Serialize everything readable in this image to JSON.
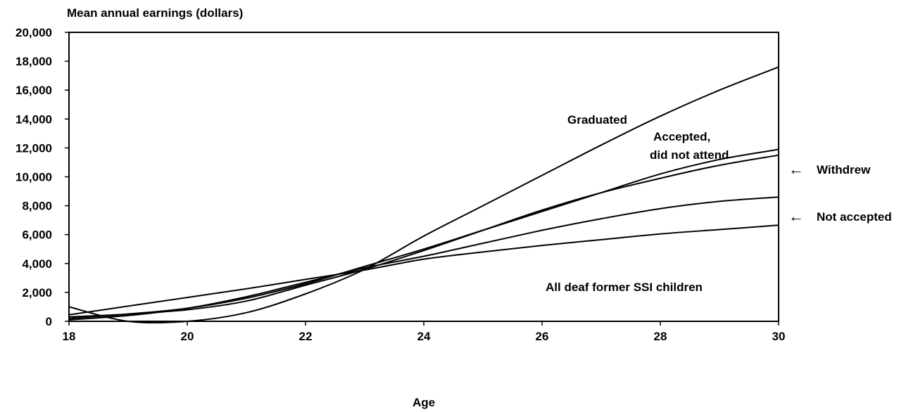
{
  "chart_data": {
    "type": "line",
    "ylabel": "Mean annual earnings (dollars)",
    "xlabel": "Age",
    "xlim": [
      18,
      30
    ],
    "ylim": [
      0,
      20000
    ],
    "xticks": [
      18,
      20,
      22,
      24,
      26,
      28,
      30
    ],
    "yticks": [
      0,
      2000,
      4000,
      6000,
      8000,
      10000,
      12000,
      14000,
      16000,
      18000,
      20000
    ],
    "x": [
      18,
      19,
      20,
      21,
      22,
      23,
      24,
      25,
      26,
      27,
      28,
      29,
      30
    ],
    "grid": false,
    "legend": "none",
    "series": [
      {
        "name": "Graduated",
        "values": [
          1000,
          0,
          0,
          600,
          1900,
          3600,
          5900,
          8000,
          10100,
          12200,
          14200,
          16000,
          17600
        ]
      },
      {
        "name": "Accepted, did not attend",
        "values": [
          200,
          500,
          900,
          1600,
          2600,
          3800,
          5000,
          6300,
          7600,
          8900,
          10200,
          11200,
          11900
        ]
      },
      {
        "name": "Withdrew",
        "values": [
          300,
          500,
          800,
          1400,
          2500,
          3600,
          4900,
          6300,
          7700,
          8900,
          9900,
          10800,
          11500
        ]
      },
      {
        "name": "Not accepted",
        "values": [
          100,
          400,
          900,
          1700,
          2700,
          3700,
          4500,
          5400,
          6300,
          7100,
          7800,
          8300,
          8600
        ]
      },
      {
        "name": "All deaf former SSI children",
        "values": [
          450,
          1050,
          1650,
          2250,
          2900,
          3550,
          4300,
          4800,
          5250,
          5650,
          6050,
          6350,
          6650
        ]
      }
    ],
    "annotations": {
      "graduated": "Graduated",
      "accepted_line1": "Accepted,",
      "accepted_line2": "did not attend",
      "withdrew": "Withdrew",
      "not_accepted": "Not accepted",
      "all_deaf": "All deaf former SSI children",
      "arrow_glyph": "←"
    }
  }
}
